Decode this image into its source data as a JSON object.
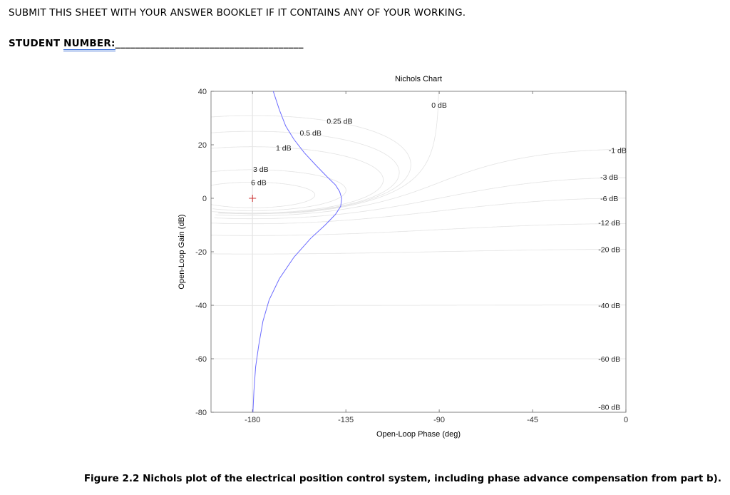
{
  "header": {
    "instruction": "SUBMIT THIS SHEET WITH YOUR ANSWER BOOKLET IF IT CONTAINS ANY OF YOUR WORKING.",
    "student_label_a": "STUDENT ",
    "student_label_b": "NUMBER:",
    "student_blank": "______________________________________"
  },
  "caption": "Figure 2.2 Nichols plot of the electrical position control system, including phase advance compensation from part b).",
  "chart_data": {
    "type": "line",
    "title": "Nichols Chart",
    "xlabel": "Open-Loop Phase (deg)",
    "ylabel": "Open-Loop Gain (dB)",
    "xlim": [
      -200,
      0
    ],
    "ylim": [
      -80,
      40
    ],
    "xticks": [
      -180,
      -135,
      -90,
      -45,
      0
    ],
    "yticks": [
      40,
      20,
      0,
      -20,
      -40,
      -60,
      -80
    ],
    "grid": true,
    "critical_point": {
      "x": -180,
      "y": 0
    },
    "grid_labels": [
      {
        "text": "0 dB",
        "x": -90,
        "y": 35
      },
      {
        "text": "0.25 dB",
        "x": -138,
        "y": 29
      },
      {
        "text": "0.5 dB",
        "x": -152,
        "y": 24.5
      },
      {
        "text": "1 dB",
        "x": -165,
        "y": 19
      },
      {
        "text": "3 dB",
        "x": -176,
        "y": 11
      },
      {
        "text": "6 dB",
        "x": -177,
        "y": 6
      },
      {
        "text": "-1 dB",
        "x": -4,
        "y": 18
      },
      {
        "text": "-3 dB",
        "x": -8,
        "y": 8
      },
      {
        "text": "-6 dB",
        "x": -8,
        "y": 0
      },
      {
        "text": "-12 dB",
        "x": -8,
        "y": -9
      },
      {
        "text": "-20 dB",
        "x": -8,
        "y": -19
      },
      {
        "text": "-40 dB",
        "x": -8,
        "y": -40
      },
      {
        "text": "-60 dB",
        "x": -8,
        "y": -60
      },
      {
        "text": "-80 dB",
        "x": -8,
        "y": -78
      }
    ],
    "series": [
      {
        "color": "#6b6bff",
        "x": [
          -170,
          -167,
          -164,
          -160,
          -155,
          -149,
          -144,
          -140,
          -138,
          -137,
          -137.5,
          -140,
          -145,
          -152,
          -160,
          -167,
          -172,
          -175,
          -177,
          -178.5,
          -179.3,
          -179.8
        ],
        "y": [
          40,
          33,
          27,
          22,
          17,
          12,
          8,
          5,
          2.5,
          0,
          -3,
          -6,
          -10,
          -15,
          -22,
          -30,
          -38,
          -46,
          -55,
          -63,
          -72,
          -80
        ]
      }
    ],
    "grid_color": "#e3e3e3",
    "axis_color": "#666666",
    "critical_point_color": "#cc3333"
  }
}
